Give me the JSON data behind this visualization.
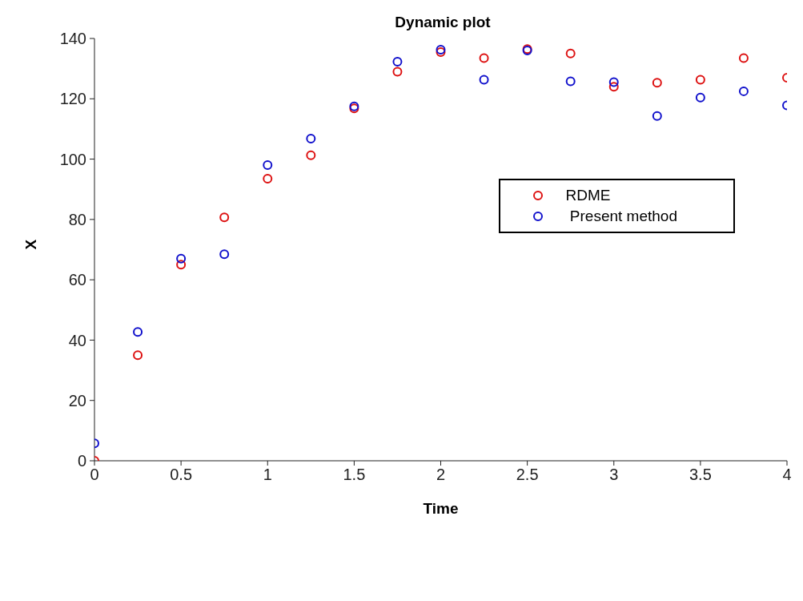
{
  "chart_data": {
    "type": "scatter",
    "title": "Dynamic plot",
    "xlabel": "Time",
    "ylabel": "X",
    "x": [
      0,
      0.25,
      0.5,
      0.75,
      1,
      1.25,
      1.5,
      1.75,
      2,
      2.25,
      2.5,
      2.75,
      3,
      3.25,
      3.5,
      3.75,
      4
    ],
    "series": [
      {
        "name": "RDME",
        "color": "#dd1111",
        "values": [
          0,
          35,
          65,
          80.7,
          93.5,
          101.3,
          116.8,
          129,
          135.5,
          133.5,
          136.5,
          135,
          124,
          125.3,
          126.3,
          133.5,
          127
        ]
      },
      {
        "name": " Present method",
        "color": "#1111cc",
        "values": [
          5.8,
          42.7,
          67,
          68.5,
          98,
          106.8,
          117.5,
          132.3,
          136.3,
          126.3,
          136,
          125.8,
          125.5,
          114.3,
          120.4,
          122.5,
          117.8
        ]
      }
    ],
    "xlim": [
      0,
      4
    ],
    "xticks": [
      0,
      0.5,
      1,
      1.5,
      2,
      2.5,
      3,
      3.5,
      4
    ],
    "ylim": [
      0,
      140
    ],
    "yticks": [
      0,
      20,
      40,
      60,
      80,
      100,
      120,
      140
    ],
    "grid": false,
    "legend": "top right",
    "marker": "circle"
  }
}
